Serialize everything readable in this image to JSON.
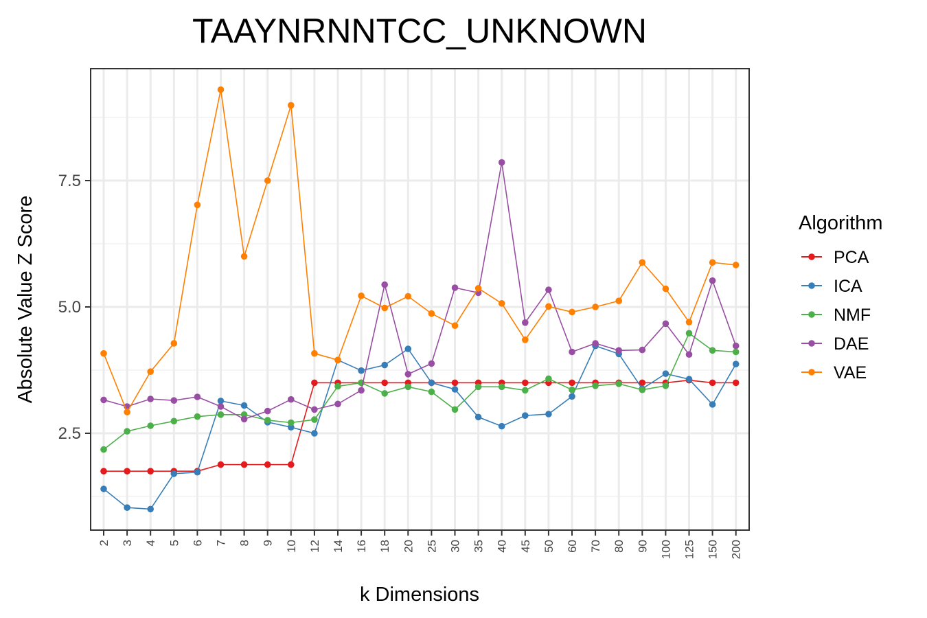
{
  "chart_data": {
    "type": "line",
    "title": "TAAYNRNNTCC_UNKNOWN",
    "xlabel": "k Dimensions",
    "ylabel": "Absolute Value Z Score",
    "ylim": [
      0.75,
      9.6
    ],
    "yticks": [
      2.5,
      5.0,
      7.5
    ],
    "ytick_labels": [
      "2.5",
      "5.0",
      "7.5"
    ],
    "grid": true,
    "legend_title": "Algorithm",
    "legend_position": "right",
    "categories": [
      "2",
      "3",
      "4",
      "5",
      "6",
      "7",
      "8",
      "9",
      "10",
      "12",
      "14",
      "16",
      "18",
      "20",
      "25",
      "30",
      "35",
      "40",
      "45",
      "50",
      "60",
      "70",
      "80",
      "90",
      "100",
      "125",
      "150",
      "200"
    ],
    "series": [
      {
        "name": "PCA",
        "color": "#e41a1c",
        "values": [
          1.75,
          1.75,
          1.75,
          1.75,
          1.75,
          1.88,
          1.88,
          1.88,
          1.88,
          3.5,
          3.5,
          3.5,
          3.5,
          3.5,
          3.5,
          3.5,
          3.5,
          3.5,
          3.5,
          3.5,
          3.5,
          3.5,
          3.5,
          3.5,
          3.5,
          3.55,
          3.5,
          3.5
        ]
      },
      {
        "name": "ICA",
        "color": "#377eb8",
        "values": [
          1.4,
          1.03,
          1.0,
          1.7,
          1.73,
          3.14,
          3.05,
          2.72,
          2.62,
          2.5,
          3.95,
          3.74,
          3.85,
          4.17,
          3.5,
          3.37,
          2.82,
          2.64,
          2.85,
          2.88,
          3.23,
          4.23,
          4.07,
          3.38,
          3.68,
          3.57,
          3.07,
          3.87
        ]
      },
      {
        "name": "NMF",
        "color": "#4daf4a",
        "values": [
          2.18,
          2.54,
          2.65,
          2.74,
          2.83,
          2.87,
          2.87,
          2.76,
          2.71,
          2.77,
          3.43,
          3.5,
          3.29,
          3.42,
          3.32,
          2.97,
          3.42,
          3.42,
          3.35,
          3.58,
          3.36,
          3.44,
          3.48,
          3.36,
          3.44,
          4.48,
          4.14,
          4.11
        ]
      },
      {
        "name": "DAE",
        "color": "#984ea3",
        "values": [
          3.16,
          3.03,
          3.18,
          3.15,
          3.22,
          3.03,
          2.78,
          2.94,
          3.17,
          2.97,
          3.08,
          3.35,
          5.44,
          3.67,
          3.88,
          5.38,
          5.28,
          7.86,
          4.69,
          5.34,
          4.11,
          4.28,
          4.14,
          4.15,
          4.67,
          4.06,
          5.52,
          4.23
        ]
      },
      {
        "name": "VAE",
        "color": "#ff7f00",
        "values": [
          4.08,
          2.92,
          3.72,
          4.28,
          7.02,
          9.3,
          6.0,
          7.5,
          8.99,
          4.08,
          3.95,
          5.22,
          4.98,
          5.21,
          4.87,
          4.63,
          5.37,
          5.07,
          4.35,
          5.01,
          4.9,
          5.0,
          5.12,
          5.88,
          5.36,
          4.7,
          5.88,
          5.83
        ]
      }
    ]
  }
}
